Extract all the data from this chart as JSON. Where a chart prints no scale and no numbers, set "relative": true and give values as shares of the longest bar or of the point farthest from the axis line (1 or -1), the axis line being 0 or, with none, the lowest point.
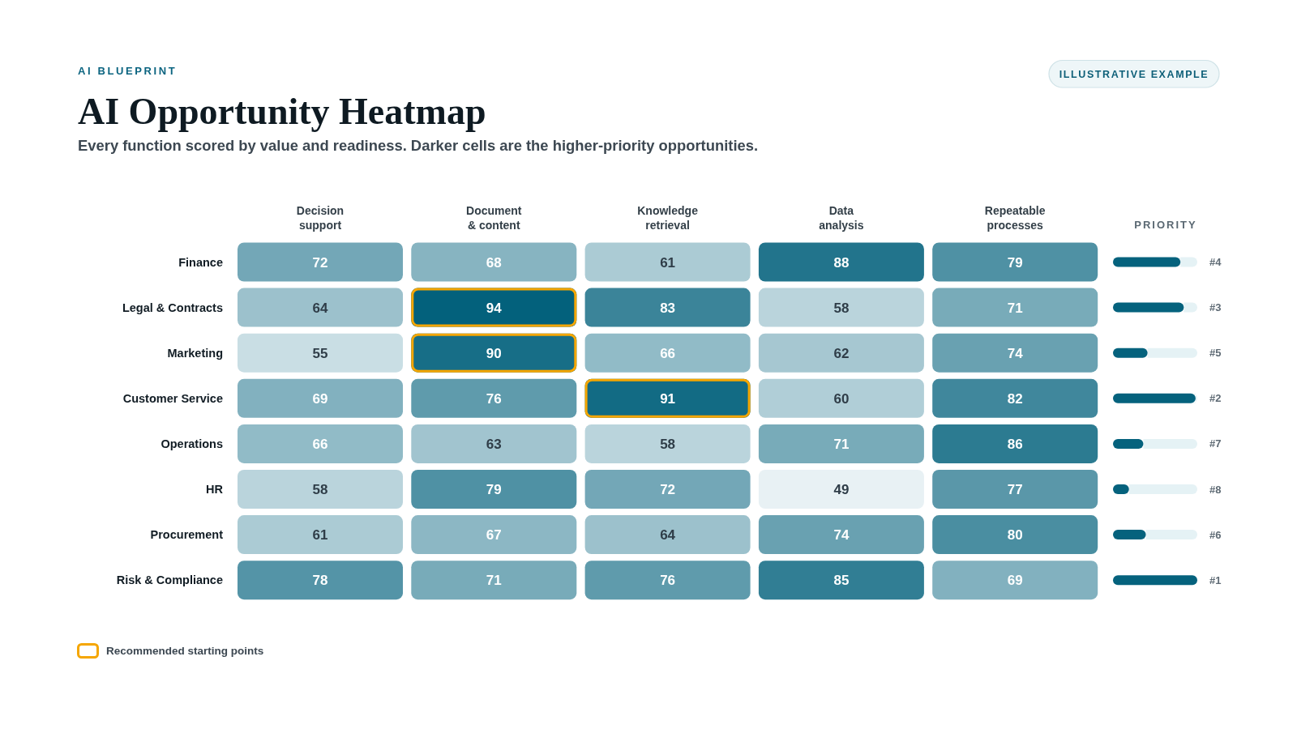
{
  "chart_data": [
    {
      "type": "heatmap",
      "title": "AI Opportunity Heatmap",
      "subtitle": "Every function scored by value and readiness. Darker cells are the higher-priority opportunities.",
      "categories": [
        "Decision support",
        "Document & content",
        "Knowledge retrieval",
        "Data analysis",
        "Repeatable processes"
      ],
      "y_categories": [
        "Finance",
        "Legal & Contracts",
        "Marketing",
        "Customer Service",
        "Operations",
        "HR",
        "Procurement",
        "Risk & Compliance"
      ],
      "cells": [
        [
          72,
          68,
          61,
          88,
          79
        ],
        [
          64,
          94,
          83,
          58,
          71
        ],
        [
          55,
          90,
          66,
          62,
          74
        ],
        [
          69,
          76,
          91,
          60,
          82
        ],
        [
          66,
          63,
          58,
          71,
          86
        ],
        [
          58,
          79,
          72,
          49,
          77
        ],
        [
          61,
          67,
          64,
          74,
          80
        ],
        [
          78,
          71,
          76,
          85,
          69
        ]
      ],
      "data_labels": true,
      "annotations": [
        "AI BLUEPRINT",
        "ILLUSTRATIVE EXAMPLE",
        "Recommended starting points"
      ]
    },
    {
      "type": "bar",
      "orientation": "horizontal",
      "relative": true,
      "title": "PRIORITY",
      "color": "#05627d",
      "categories": [
        "#4",
        "#3",
        "#5",
        "#2",
        "#7",
        "#8",
        "#6",
        "#1"
      ],
      "values": [
        0.8,
        0.84,
        0.41,
        0.98,
        0.36,
        0.19,
        0.39,
        1
      ]
    }
  ]
}
